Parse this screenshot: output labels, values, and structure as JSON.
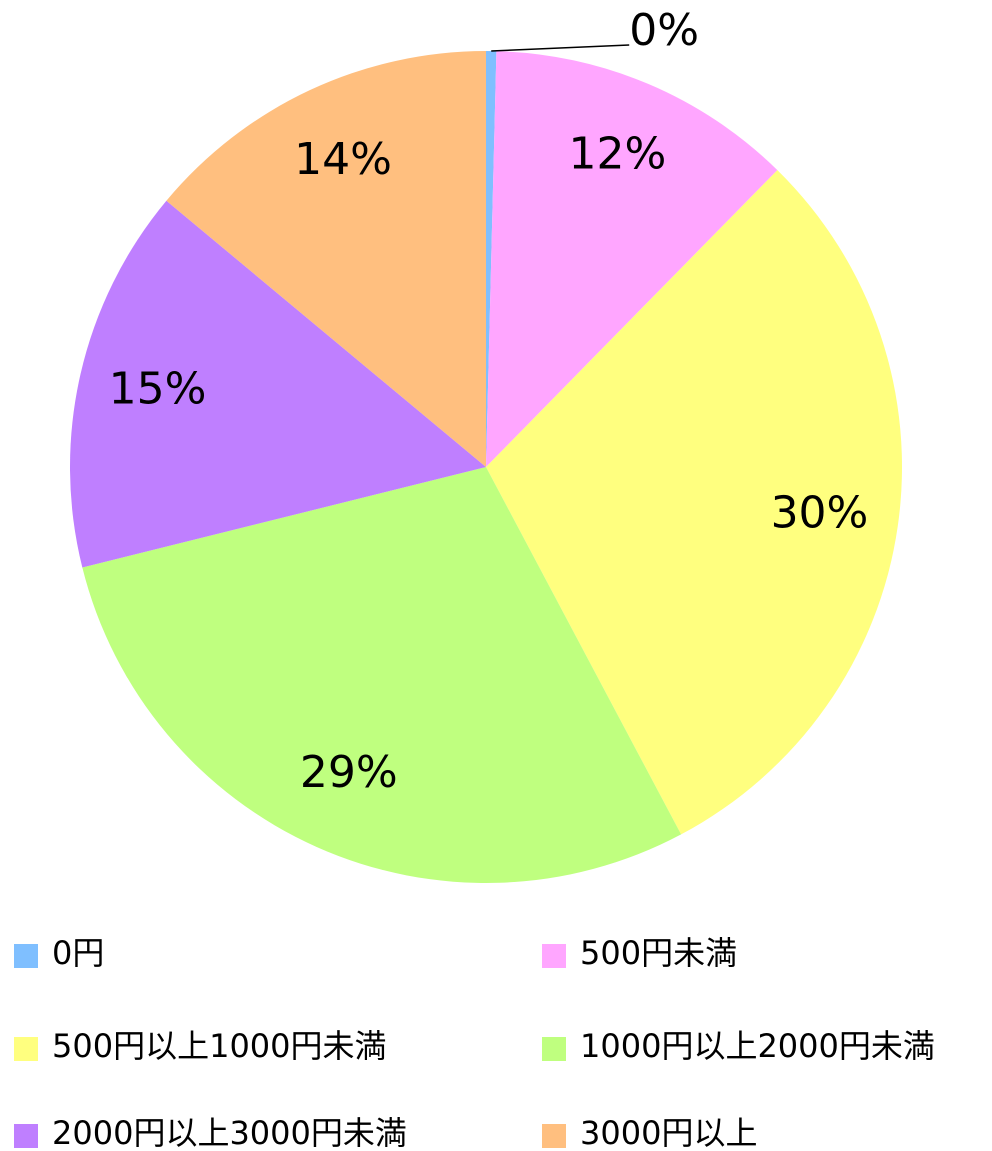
{
  "chart_data": {
    "type": "pie",
    "categories": [
      "0円",
      "500円未満",
      "500円以上1000円未満",
      "1000円以上2000円未満",
      "2000円以上3000円未満",
      "3000円以上"
    ],
    "values": [
      0.4,
      12,
      30,
      29,
      15,
      14
    ],
    "value_labels": [
      "0%",
      "12%",
      "30%",
      "29%",
      "15%",
      "14%"
    ],
    "colors": [
      "#7fbfff",
      "#ffa6ff",
      "#ffff7f",
      "#bfff7f",
      "#bf7fff",
      "#ffbf7f"
    ],
    "legend": "bottom"
  }
}
